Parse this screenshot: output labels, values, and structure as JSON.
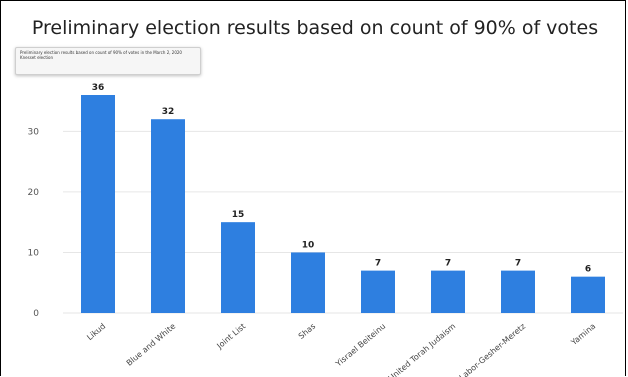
{
  "chart_data": {
    "type": "bar",
    "title": "Preliminary election results based on count of 90% of votes",
    "tooltip": "Preliminary election results based on count of 90% of votes in the March 2, 2020 Knesset election",
    "categories": [
      "Likud",
      "Blue and White",
      "Joint List",
      "Shas",
      "Yisrael Beiteinu",
      "United Torah Judaism",
      "Labor-Gesher-Meretz",
      "Yamina"
    ],
    "values": [
      36,
      32,
      15,
      10,
      7,
      7,
      7,
      6
    ],
    "data_labels": [
      "36",
      "32",
      "15",
      "10",
      "7",
      "7",
      "7",
      "6"
    ],
    "ylim": [
      0,
      36
    ],
    "yticks": [
      0,
      10,
      20,
      30
    ],
    "ytick_labels": [
      "0",
      "10",
      "20",
      "30"
    ],
    "grid": true,
    "legend": "none",
    "bar_color": "#2e7fe0",
    "grid_color": "#e6e6e6"
  }
}
